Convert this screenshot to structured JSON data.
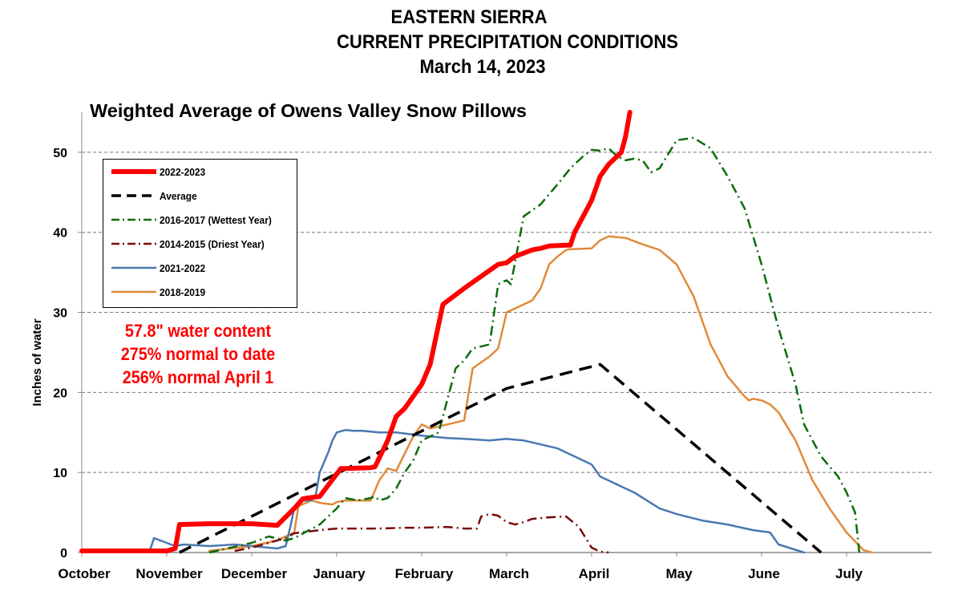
{
  "page": {
    "title_line1": "EASTERN SIERRA",
    "title_line2": "CURRENT PRECIPITATION CONDITIONS",
    "title_line3": "March 14, 2023"
  },
  "annotation": {
    "line1": "57.8\" water content",
    "line2": "275% normal to date",
    "line3": "256% normal April 1"
  },
  "colors": {
    "2022-2023": "#ff0000",
    "average": "#000000",
    "2016-2017": "#0b6b0b",
    "2014-2015": "#7a0a0a",
    "2021-2022": "#4a78b0",
    "2018-2019": "#e08a3a"
  },
  "chart_data": {
    "type": "line",
    "title": "Weighted Average of Owens Valley Snow Pillows",
    "xlabel": "",
    "ylabel": "Inches of water",
    "ylim": [
      0,
      55
    ],
    "yticks": [
      0,
      10,
      20,
      30,
      40,
      50
    ],
    "xlim": [
      0,
      10
    ],
    "x_unit": "months since October 1",
    "month_labels": [
      "October",
      "November",
      "December",
      "January",
      "February",
      "March",
      "April",
      "May",
      "June",
      "July"
    ],
    "grid": "horizontal dashed",
    "legend_position": "upper-left",
    "series": [
      {
        "name": "2022-2023",
        "color_key": "2022-2023",
        "style": "solid-thick",
        "x": [
          0,
          1.0,
          1.1,
          1.15,
          1.5,
          2.0,
          2.3,
          2.5,
          2.6,
          2.65,
          2.8,
          3.05,
          3.1,
          3.4,
          3.45,
          3.6,
          3.7,
          3.8,
          3.9,
          4.0,
          4.1,
          4.25,
          4.5,
          4.9,
          5.0,
          5.1,
          5.2,
          5.3,
          5.4,
          5.5,
          5.7,
          5.75,
          5.8,
          5.9,
          6.0,
          6.1,
          6.2,
          6.3,
          6.35,
          6.4,
          6.45
        ],
        "y": [
          0.2,
          0.2,
          0.5,
          3.5,
          3.6,
          3.6,
          3.4,
          5.5,
          6.7,
          6.8,
          7.0,
          10.5,
          10.5,
          10.6,
          10.7,
          14.0,
          17.0,
          18.0,
          19.5,
          21.0,
          23.5,
          31.0,
          33.0,
          36.0,
          36.2,
          37.0,
          37.4,
          37.8,
          38.0,
          38.3,
          38.4,
          38.4,
          40.0,
          42.0,
          44.0,
          47.0,
          48.5,
          49.5,
          50.0,
          52.0,
          55.0
        ]
      },
      {
        "name": "Average",
        "color_key": "average",
        "style": "dashed",
        "x": [
          1.15,
          5.0,
          6.1,
          8.7
        ],
        "y": [
          0,
          20.5,
          23.5,
          0
        ]
      },
      {
        "name": "2016-2017 (Wettest Year)",
        "color_key": "2016-2017",
        "style": "dashdot",
        "x": [
          1.5,
          2.0,
          2.2,
          2.4,
          2.5,
          2.8,
          3.0,
          3.1,
          3.25,
          3.4,
          3.45,
          3.5,
          3.6,
          3.7,
          3.8,
          3.9,
          4.0,
          4.2,
          4.4,
          4.5,
          4.6,
          4.8,
          4.9,
          4.95,
          5.0,
          5.05,
          5.2,
          5.4,
          5.6,
          5.75,
          5.9,
          6.0,
          6.1,
          6.2,
          6.25,
          6.3,
          6.4,
          6.5,
          6.6,
          6.7,
          6.8,
          7.0,
          7.2,
          7.4,
          7.6,
          7.8,
          8.0,
          8.2,
          8.4,
          8.5,
          8.7,
          8.9,
          9.0,
          9.1,
          9.15
        ],
        "y": [
          0,
          1.2,
          2.0,
          1.5,
          1.8,
          3.5,
          5.5,
          6.8,
          6.5,
          6.8,
          7.0,
          6.5,
          6.8,
          8.0,
          10.0,
          11.5,
          14.0,
          15.0,
          23.0,
          24.0,
          25.5,
          26.0,
          33.5,
          33.8,
          34.0,
          33.5,
          42.0,
          43.5,
          46.0,
          48.0,
          49.5,
          50.3,
          50.2,
          50.5,
          50.0,
          49.5,
          49.0,
          49.2,
          49.0,
          47.5,
          48.0,
          51.5,
          51.8,
          50.5,
          47.0,
          43.0,
          36.0,
          28.0,
          21.0,
          16.0,
          12.0,
          9.5,
          7.5,
          5.0,
          0
        ]
      },
      {
        "name": "2014-2015 (Driest Year)",
        "color_key": "2014-2015",
        "style": "dashdot",
        "x": [
          1.8,
          2.0,
          2.2,
          2.4,
          2.5,
          2.8,
          3.0,
          3.5,
          3.8,
          4.0,
          4.3,
          4.5,
          4.65,
          4.7,
          4.8,
          4.9,
          5.0,
          5.1,
          5.2,
          5.3,
          5.5,
          5.7,
          5.85,
          6.0,
          6.1,
          6.2
        ],
        "y": [
          0.2,
          0.6,
          1.2,
          1.8,
          2.4,
          2.8,
          3.0,
          3.0,
          3.1,
          3.1,
          3.2,
          3.0,
          3.0,
          4.5,
          4.8,
          4.6,
          3.8,
          3.5,
          3.8,
          4.2,
          4.4,
          4.5,
          3.2,
          0.6,
          0.1,
          0
        ]
      },
      {
        "name": "2021-2022",
        "color_key": "2021-2022",
        "style": "solid",
        "x": [
          0,
          0.8,
          0.85,
          0.9,
          1.0,
          1.1,
          1.2,
          1.35,
          1.5,
          1.8,
          2.0,
          2.2,
          2.3,
          2.4,
          2.45,
          2.5,
          2.6,
          2.7,
          2.75,
          2.8,
          2.9,
          2.95,
          3.0,
          3.1,
          3.2,
          3.3,
          3.4,
          3.5,
          3.7,
          4.0,
          4.3,
          4.5,
          4.8,
          5.0,
          5.2,
          5.4,
          5.6,
          5.8,
          6.0,
          6.1,
          6.3,
          6.5,
          6.8,
          7.0,
          7.3,
          7.6,
          7.9,
          8.1,
          8.2,
          8.5
        ],
        "y": [
          0.2,
          0.2,
          1.8,
          1.6,
          1.2,
          0.8,
          1.0,
          0.9,
          0.8,
          1.0,
          0.8,
          0.6,
          0.5,
          0.8,
          3.0,
          5.5,
          6.5,
          6.5,
          7.0,
          10.0,
          12.5,
          14.0,
          15.0,
          15.3,
          15.2,
          15.2,
          15.1,
          15.0,
          15.0,
          14.6,
          14.3,
          14.2,
          14.0,
          14.2,
          14.0,
          13.5,
          13.0,
          12.0,
          11.0,
          9.5,
          8.5,
          7.5,
          5.5,
          4.8,
          4.0,
          3.5,
          2.8,
          2.5,
          1.0,
          0
        ]
      },
      {
        "name": "2018-2019",
        "color_key": "2018-2019",
        "style": "solid",
        "x": [
          1.5,
          2.0,
          2.3,
          2.4,
          2.5,
          2.55,
          2.7,
          2.8,
          2.95,
          3.0,
          3.1,
          3.4,
          3.5,
          3.6,
          3.7,
          3.9,
          4.0,
          4.1,
          4.3,
          4.5,
          4.6,
          4.8,
          4.9,
          5.0,
          5.1,
          5.2,
          5.3,
          5.4,
          5.5,
          5.6,
          5.7,
          5.75,
          6.0,
          6.1,
          6.2,
          6.4,
          6.6,
          6.8,
          7.0,
          7.2,
          7.4,
          7.6,
          7.8,
          7.85,
          7.9,
          8.0,
          8.1,
          8.2,
          8.4,
          8.6,
          8.8,
          9.0,
          9.2,
          9.3
        ],
        "y": [
          0.2,
          0.8,
          1.5,
          2.0,
          2.5,
          5.8,
          6.5,
          6.2,
          6.0,
          6.3,
          6.5,
          6.5,
          9.0,
          10.5,
          10.2,
          14.5,
          16.0,
          15.5,
          16.0,
          16.5,
          23.0,
          24.5,
          25.5,
          30.0,
          30.5,
          31.0,
          31.5,
          33.0,
          36.0,
          37.0,
          37.8,
          37.9,
          38.0,
          39.0,
          39.5,
          39.3,
          38.5,
          37.8,
          36.0,
          32.0,
          26.0,
          22.0,
          19.5,
          19.0,
          19.2,
          19.0,
          18.5,
          17.5,
          14.0,
          9.0,
          5.5,
          2.5,
          0.3,
          0
        ]
      }
    ]
  }
}
